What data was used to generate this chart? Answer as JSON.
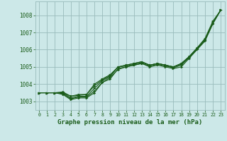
{
  "title": "Graphe pression niveau de la mer (hPa)",
  "bg_color": "#cce8e8",
  "grid_color": "#99bbbb",
  "line_color": "#1a5c1a",
  "marker_color": "#1a5c1a",
  "xlim": [
    -0.5,
    23.5
  ],
  "ylim": [
    1002.5,
    1008.8
  ],
  "xticks": [
    0,
    1,
    2,
    3,
    4,
    5,
    6,
    7,
    8,
    9,
    10,
    11,
    12,
    13,
    14,
    15,
    16,
    17,
    18,
    19,
    20,
    21,
    22,
    23
  ],
  "yticks": [
    1003,
    1004,
    1005,
    1006,
    1007,
    1008
  ],
  "series": [
    [
      1003.5,
      1003.5,
      1003.5,
      1003.4,
      1003.1,
      1003.2,
      1003.2,
      1003.5,
      1004.1,
      1004.3,
      1004.9,
      1005.0,
      1005.1,
      1005.2,
      1005.0,
      1005.1,
      1005.0,
      1004.9,
      1005.0,
      1005.5,
      1006.0,
      1006.5,
      1007.5,
      1008.3
    ],
    [
      1003.5,
      1003.5,
      1003.5,
      1003.45,
      1003.15,
      1003.25,
      1003.25,
      1003.6,
      1004.1,
      1004.4,
      1004.85,
      1005.0,
      1005.1,
      1005.2,
      1005.05,
      1005.15,
      1005.05,
      1004.95,
      1005.1,
      1005.55,
      1006.05,
      1006.55,
      1007.55,
      1008.3
    ],
    [
      1003.5,
      1003.5,
      1003.5,
      1003.5,
      1003.2,
      1003.3,
      1003.3,
      1003.75,
      1004.2,
      1004.45,
      1005.0,
      1005.05,
      1005.15,
      1005.25,
      1005.1,
      1005.2,
      1005.1,
      1005.0,
      1005.15,
      1005.55,
      1006.05,
      1006.55,
      1007.55,
      1008.3
    ],
    [
      1003.5,
      1003.5,
      1003.5,
      1003.5,
      1003.3,
      1003.4,
      1003.4,
      1003.9,
      1004.25,
      1004.5,
      1005.0,
      1005.1,
      1005.2,
      1005.3,
      1005.1,
      1005.2,
      1005.1,
      1005.0,
      1005.2,
      1005.6,
      1006.1,
      1006.6,
      1007.6,
      1008.3
    ],
    [
      1003.5,
      1003.5,
      1003.5,
      1003.55,
      1003.3,
      1003.35,
      1003.4,
      1004.0,
      1004.3,
      1004.55,
      1005.0,
      1005.1,
      1005.2,
      1005.3,
      1005.1,
      1005.2,
      1005.1,
      1005.0,
      1005.2,
      1005.6,
      1006.1,
      1006.65,
      1007.65,
      1008.3
    ]
  ]
}
